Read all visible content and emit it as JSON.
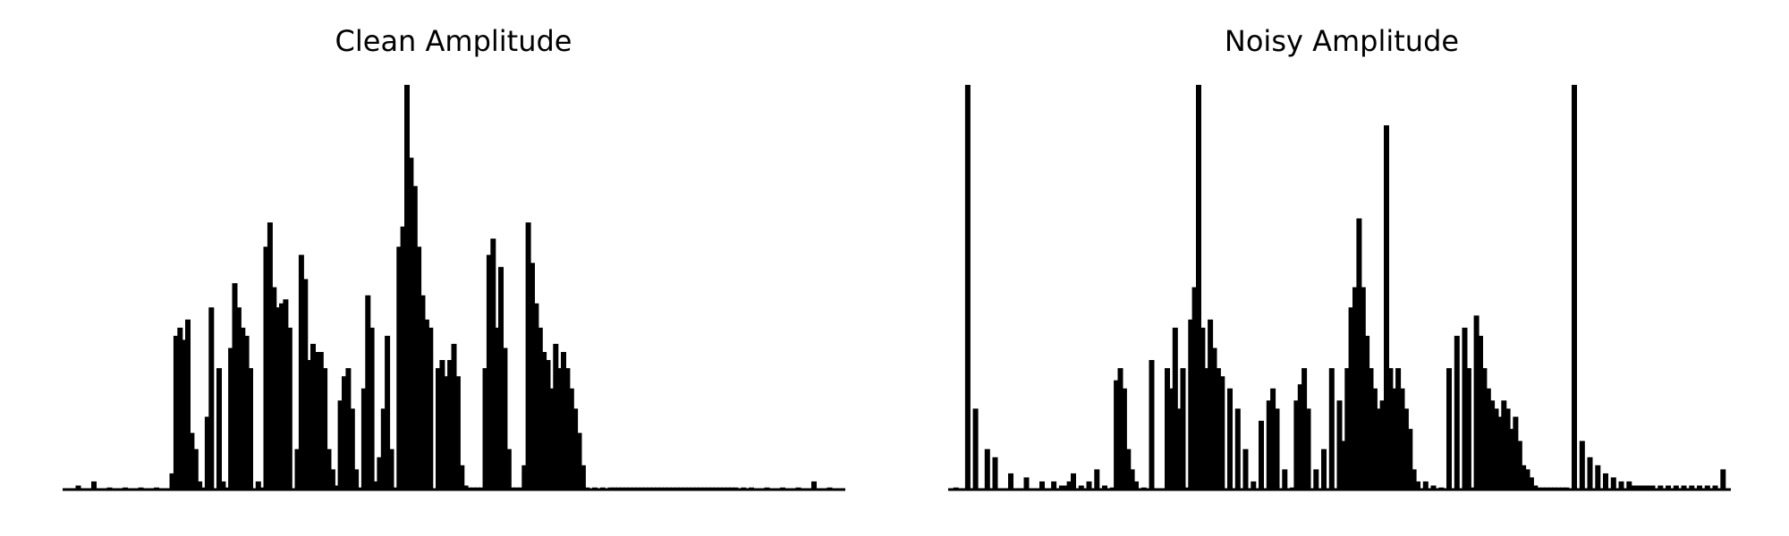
{
  "chart_data": [
    {
      "type": "area",
      "title": "Clean Amplitude",
      "xlabel": "",
      "ylabel": "",
      "axes_visible": false,
      "grid": false,
      "color": "#000000",
      "x_range": [
        0,
        1
      ],
      "ylim": [
        0,
        1
      ],
      "x": [
        0.02,
        0.04,
        0.06,
        0.08,
        0.1,
        0.12,
        0.14,
        0.145,
        0.15,
        0.155,
        0.16,
        0.165,
        0.17,
        0.175,
        0.18,
        0.185,
        0.19,
        0.2,
        0.205,
        0.21,
        0.215,
        0.22,
        0.225,
        0.23,
        0.235,
        0.24,
        0.25,
        0.255,
        0.26,
        0.265,
        0.27,
        0.275,
        0.28,
        0.285,
        0.29,
        0.3,
        0.305,
        0.31,
        0.315,
        0.32,
        0.325,
        0.33,
        0.335,
        0.34,
        0.345,
        0.35,
        0.355,
        0.36,
        0.365,
        0.37,
        0.375,
        0.38,
        0.385,
        0.39,
        0.395,
        0.4,
        0.405,
        0.41,
        0.415,
        0.42,
        0.425,
        0.43,
        0.435,
        0.44,
        0.445,
        0.45,
        0.455,
        0.46,
        0.465,
        0.47,
        0.48,
        0.485,
        0.49,
        0.495,
        0.5,
        0.505,
        0.51,
        0.515,
        0.52,
        0.525,
        0.53,
        0.535,
        0.54,
        0.545,
        0.55,
        0.555,
        0.56,
        0.565,
        0.57,
        0.575,
        0.58,
        0.585,
        0.59,
        0.595,
        0.6,
        0.605,
        0.61,
        0.615,
        0.62,
        0.625,
        0.63,
        0.635,
        0.64,
        0.645,
        0.65,
        0.655,
        0.66,
        0.665,
        0.67,
        0.68,
        0.69,
        0.7,
        0.705,
        0.71,
        0.715,
        0.72,
        0.725,
        0.73,
        0.735,
        0.74,
        0.745,
        0.75,
        0.755,
        0.76,
        0.765,
        0.77,
        0.775,
        0.78,
        0.785,
        0.79,
        0.795,
        0.8,
        0.805,
        0.81,
        0.815,
        0.82,
        0.825,
        0.83,
        0.835,
        0.84,
        0.845,
        0.85,
        0.855,
        0.86,
        0.87,
        0.88,
        0.9,
        0.92,
        0.94,
        0.96,
        0.98
      ],
      "y": [
        0.01,
        0.02,
        0.005,
        0.005,
        0.005,
        0.005,
        0.04,
        0.38,
        0.4,
        0.37,
        0.42,
        0.14,
        0.1,
        0.02,
        0.005,
        0.18,
        0.45,
        0.3,
        0.02,
        0.005,
        0.35,
        0.51,
        0.45,
        0.4,
        0.38,
        0.3,
        0.02,
        0.005,
        0.6,
        0.66,
        0.5,
        0.45,
        0.46,
        0.47,
        0.4,
        0.1,
        0.58,
        0.52,
        0.32,
        0.36,
        0.34,
        0.34,
        0.3,
        0.1,
        0.05,
        0.01,
        0.22,
        0.28,
        0.3,
        0.2,
        0.05,
        0.005,
        0.25,
        0.48,
        0.4,
        0.02,
        0.08,
        0.2,
        0.38,
        0.1,
        0.005,
        0.6,
        0.65,
        1.0,
        0.82,
        0.75,
        0.6,
        0.48,
        0.42,
        0.4,
        0.3,
        0.32,
        0.28,
        0.32,
        0.36,
        0.28,
        0.06,
        0.01,
        0.005,
        0.005,
        0.005,
        0.005,
        0.3,
        0.58,
        0.62,
        0.4,
        0.55,
        0.35,
        0.1,
        0.005,
        0.005,
        0.005,
        0.06,
        0.66,
        0.56,
        0.46,
        0.4,
        0.34,
        0.32,
        0.25,
        0.36,
        0.3,
        0.34,
        0.3,
        0.25,
        0.2,
        0.14,
        0.06,
        0.005,
        0.005,
        0.005,
        0.005,
        0.005,
        0.005,
        0.005,
        0.005,
        0.005,
        0.005,
        0.005,
        0.005,
        0.005,
        0.005,
        0.005,
        0.005,
        0.005,
        0.005,
        0.005,
        0.005,
        0.005,
        0.005,
        0.005,
        0.005,
        0.005,
        0.005,
        0.005,
        0.005,
        0.005,
        0.005,
        0.005,
        0.005,
        0.005,
        0.005,
        0.005,
        0.005,
        0.005,
        0.005,
        0.005,
        0.005,
        0.005,
        0.02,
        0.005
      ]
    },
    {
      "type": "area",
      "title": "Noisy Amplitude",
      "xlabel": "",
      "ylabel": "",
      "axes_visible": false,
      "grid": false,
      "color": "#000000",
      "x_range": [
        0,
        1
      ],
      "ylim": [
        0,
        1
      ],
      "x": [
        0.01,
        0.025,
        0.035,
        0.05,
        0.06,
        0.08,
        0.1,
        0.12,
        0.135,
        0.145,
        0.15,
        0.155,
        0.16,
        0.17,
        0.18,
        0.19,
        0.2,
        0.21,
        0.215,
        0.22,
        0.225,
        0.23,
        0.235,
        0.24,
        0.25,
        0.26,
        0.28,
        0.285,
        0.29,
        0.295,
        0.3,
        0.305,
        0.31,
        0.315,
        0.32,
        0.325,
        0.33,
        0.335,
        0.34,
        0.345,
        0.35,
        0.36,
        0.37,
        0.38,
        0.39,
        0.4,
        0.41,
        0.415,
        0.42,
        0.43,
        0.44,
        0.445,
        0.45,
        0.455,
        0.46,
        0.47,
        0.48,
        0.49,
        0.5,
        0.505,
        0.51,
        0.515,
        0.52,
        0.525,
        0.53,
        0.535,
        0.54,
        0.545,
        0.55,
        0.555,
        0.56,
        0.565,
        0.57,
        0.575,
        0.58,
        0.585,
        0.59,
        0.595,
        0.6,
        0.61,
        0.62,
        0.63,
        0.64,
        0.65,
        0.66,
        0.665,
        0.67,
        0.675,
        0.68,
        0.685,
        0.69,
        0.695,
        0.7,
        0.705,
        0.71,
        0.715,
        0.72,
        0.725,
        0.73,
        0.735,
        0.74,
        0.745,
        0.75,
        0.755,
        0.76,
        0.765,
        0.77,
        0.775,
        0.78,
        0.785,
        0.79,
        0.8,
        0.81,
        0.82,
        0.83,
        0.84,
        0.85,
        0.86,
        0.87,
        0.875,
        0.88,
        0.885,
        0.89,
        0.895,
        0.9,
        0.91,
        0.92,
        0.93,
        0.94,
        0.95,
        0.96,
        0.97,
        0.98,
        0.99
      ],
      "y": [
        0.005,
        1.0,
        0.2,
        0.1,
        0.08,
        0.04,
        0.03,
        0.02,
        0.02,
        0.01,
        0.01,
        0.02,
        0.04,
        0.01,
        0.02,
        0.05,
        0.01,
        0.005,
        0.27,
        0.3,
        0.25,
        0.1,
        0.05,
        0.02,
        0.005,
        0.32,
        0.3,
        0.25,
        0.4,
        0.2,
        0.3,
        0.005,
        0.42,
        0.5,
        1.0,
        0.4,
        0.3,
        0.42,
        0.35,
        0.3,
        0.28,
        0.25,
        0.2,
        0.1,
        0.02,
        0.17,
        0.22,
        0.25,
        0.2,
        0.05,
        0.005,
        0.22,
        0.26,
        0.3,
        0.2,
        0.05,
        0.1,
        0.3,
        0.22,
        0.12,
        0.3,
        0.45,
        0.5,
        0.67,
        0.5,
        0.38,
        0.3,
        0.25,
        0.2,
        0.22,
        0.9,
        0.3,
        0.25,
        0.3,
        0.25,
        0.2,
        0.15,
        0.05,
        0.02,
        0.02,
        0.01,
        0.005,
        0.3,
        0.38,
        0.4,
        0.3,
        0.005,
        0.43,
        0.38,
        0.3,
        0.25,
        0.22,
        0.2,
        0.18,
        0.22,
        0.2,
        0.15,
        0.18,
        0.12,
        0.06,
        0.05,
        0.03,
        0.01,
        0.005,
        0.005,
        0.005,
        0.005,
        0.005,
        0.005,
        0.005,
        0.005,
        1.0,
        0.12,
        0.08,
        0.06,
        0.04,
        0.03,
        0.02,
        0.02,
        0.01,
        0.01,
        0.01,
        0.01,
        0.01,
        0.01,
        0.01,
        0.01,
        0.01,
        0.01,
        0.01,
        0.01,
        0.01,
        0.01,
        0.05
      ]
    }
  ]
}
